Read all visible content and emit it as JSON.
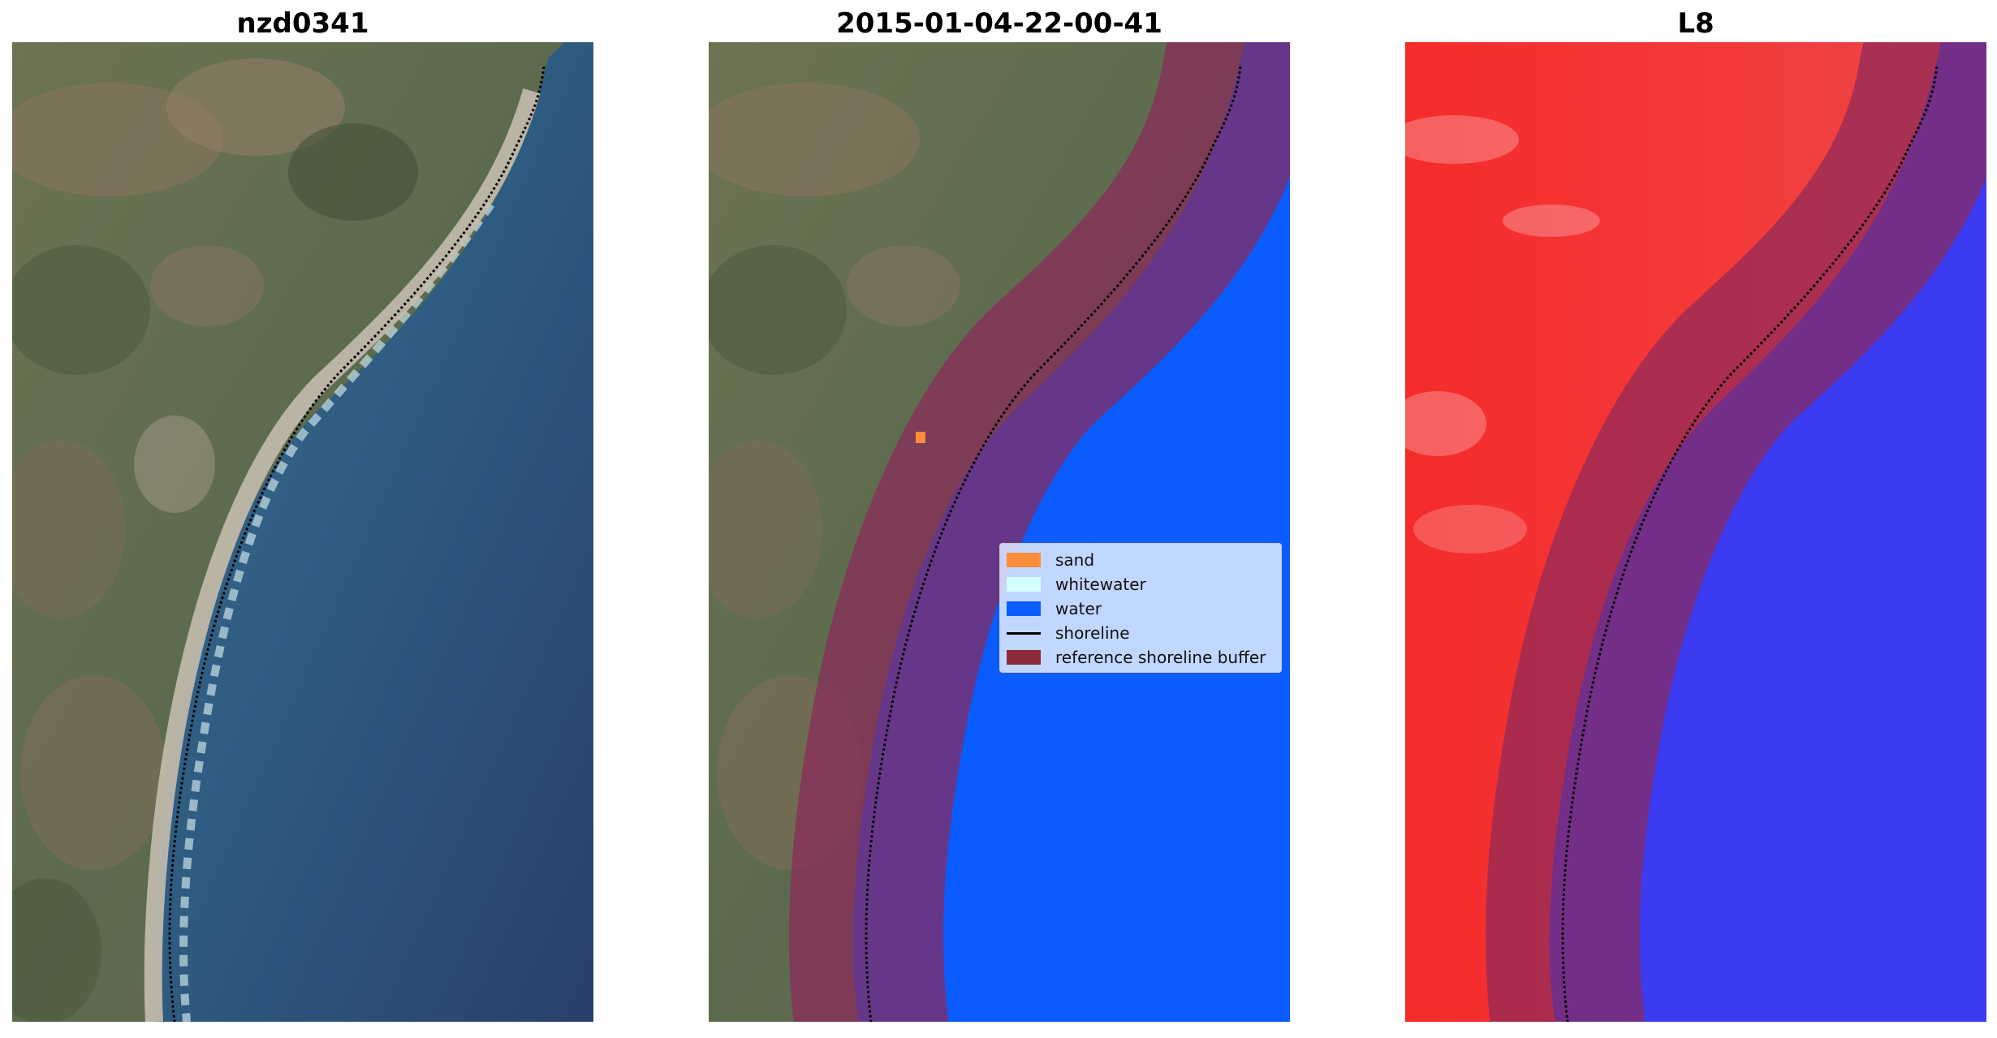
{
  "panels": [
    {
      "title": "nzd0341"
    },
    {
      "title": "2015-01-04-22-00-41"
    },
    {
      "title": "L8"
    }
  ],
  "legend": {
    "items": [
      {
        "label": "sand",
        "color": "#ff8c3a",
        "kind": "patch"
      },
      {
        "label": "whitewater",
        "color": "#d4ffff",
        "kind": "patch"
      },
      {
        "label": "water",
        "color": "#0a5cff",
        "kind": "patch"
      },
      {
        "label": "shoreline",
        "color": "#000000",
        "kind": "line"
      },
      {
        "label": "reference shoreline buffer",
        "color": "#8b2a38",
        "kind": "patch"
      }
    ]
  },
  "colors": {
    "land": "#5d6a4f",
    "sea": "#2f5f83",
    "beach": "#b8b2a3",
    "water_class": "#0a5cff",
    "buffer": "#8b2a5a",
    "index_land": "#f42b2b",
    "index_water": "#3b3bf2"
  }
}
